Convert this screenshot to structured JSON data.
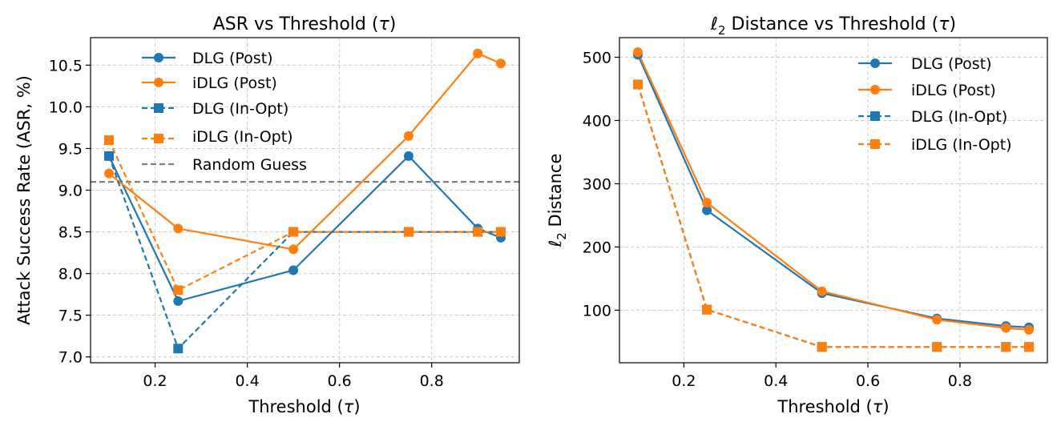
{
  "colors": {
    "dlg": "#1f77b4",
    "idlg": "#ff7f0e",
    "random": "#808080"
  },
  "chart_data": [
    {
      "type": "line",
      "title_pre": "ASR vs Threshold (",
      "title_sym": "τ",
      "title_post": ")",
      "xlabel_pre": "Threshold (",
      "xlabel_sym": "τ",
      "xlabel_post": ")",
      "ylabel": "Attack Success Rate (ASR, %)",
      "xlim": [
        0.06,
        0.99
      ],
      "ylim": [
        6.93,
        10.83
      ],
      "xticks": [
        0.2,
        0.4,
        0.6,
        0.8
      ],
      "xtick_labels": [
        "0.2",
        "0.4",
        "0.6",
        "0.8"
      ],
      "yticks": [
        7.0,
        7.5,
        8.0,
        8.5,
        9.0,
        9.5,
        10.0,
        10.5
      ],
      "ytick_labels": [
        "7.0",
        "7.5",
        "8.0",
        "8.5",
        "9.0",
        "9.5",
        "10.0",
        "10.5"
      ],
      "x": [
        0.1,
        0.25,
        0.5,
        0.75,
        0.9,
        0.95
      ],
      "series": [
        {
          "name": "DLG (Post)",
          "color_key": "dlg",
          "style": "solid",
          "marker": "circle",
          "values": [
            9.41,
            7.67,
            8.04,
            9.41,
            8.54,
            8.43
          ]
        },
        {
          "name": "iDLG (Post)",
          "color_key": "idlg",
          "style": "solid",
          "marker": "circle",
          "values": [
            9.2,
            8.54,
            8.29,
            9.65,
            10.64,
            10.52
          ]
        },
        {
          "name": "DLG (In-Opt)",
          "color_key": "dlg",
          "style": "dashed",
          "marker": "square",
          "values": [
            9.41,
            7.1,
            8.5,
            8.5,
            8.5,
            8.5
          ]
        },
        {
          "name": "iDLG (In-Opt)",
          "color_key": "idlg",
          "style": "dashed",
          "marker": "square",
          "values": [
            9.6,
            7.8,
            8.5,
            8.5,
            8.5,
            8.5
          ]
        }
      ],
      "reference_line": {
        "name": "Random Guess",
        "value": 9.1
      },
      "legend_position": "top-center"
    },
    {
      "type": "line",
      "title_pre": "",
      "title_ell": "ℓ",
      "title_sub": "2",
      "title_mid": " Distance vs Threshold (",
      "title_sym": "τ",
      "title_post": ")",
      "xlabel_pre": "Threshold (",
      "xlabel_sym": "τ",
      "xlabel_post": ")",
      "ylabel_ell": "ℓ",
      "ylabel_sub": "2",
      "ylabel_post": " Distance",
      "xlim": [
        0.06,
        0.99
      ],
      "ylim": [
        17,
        531
      ],
      "xticks": [
        0.2,
        0.4,
        0.6,
        0.8
      ],
      "xtick_labels": [
        "0.2",
        "0.4",
        "0.6",
        "0.8"
      ],
      "yticks": [
        100,
        200,
        300,
        400,
        500
      ],
      "ytick_labels": [
        "100",
        "200",
        "300",
        "400",
        "500"
      ],
      "x": [
        0.1,
        0.25,
        0.5,
        0.75,
        0.9,
        0.95
      ],
      "series": [
        {
          "name": "DLG (Post)",
          "color_key": "dlg",
          "style": "solid",
          "marker": "circle",
          "values": [
            504,
            258,
            127,
            87,
            75,
            73
          ]
        },
        {
          "name": "iDLG (Post)",
          "color_key": "idlg",
          "style": "solid",
          "marker": "circle",
          "values": [
            508,
            270,
            130,
            85,
            72,
            69
          ]
        },
        {
          "name": "DLG (In-Opt)",
          "color_key": "dlg",
          "style": "dashed",
          "marker": "square",
          "values": [
            457,
            101,
            42,
            42,
            42,
            42
          ]
        },
        {
          "name": "iDLG (In-Opt)",
          "color_key": "idlg",
          "style": "dashed",
          "marker": "square",
          "values": [
            457,
            101,
            42,
            42,
            42,
            42
          ]
        }
      ],
      "legend_position": "top-right"
    }
  ]
}
